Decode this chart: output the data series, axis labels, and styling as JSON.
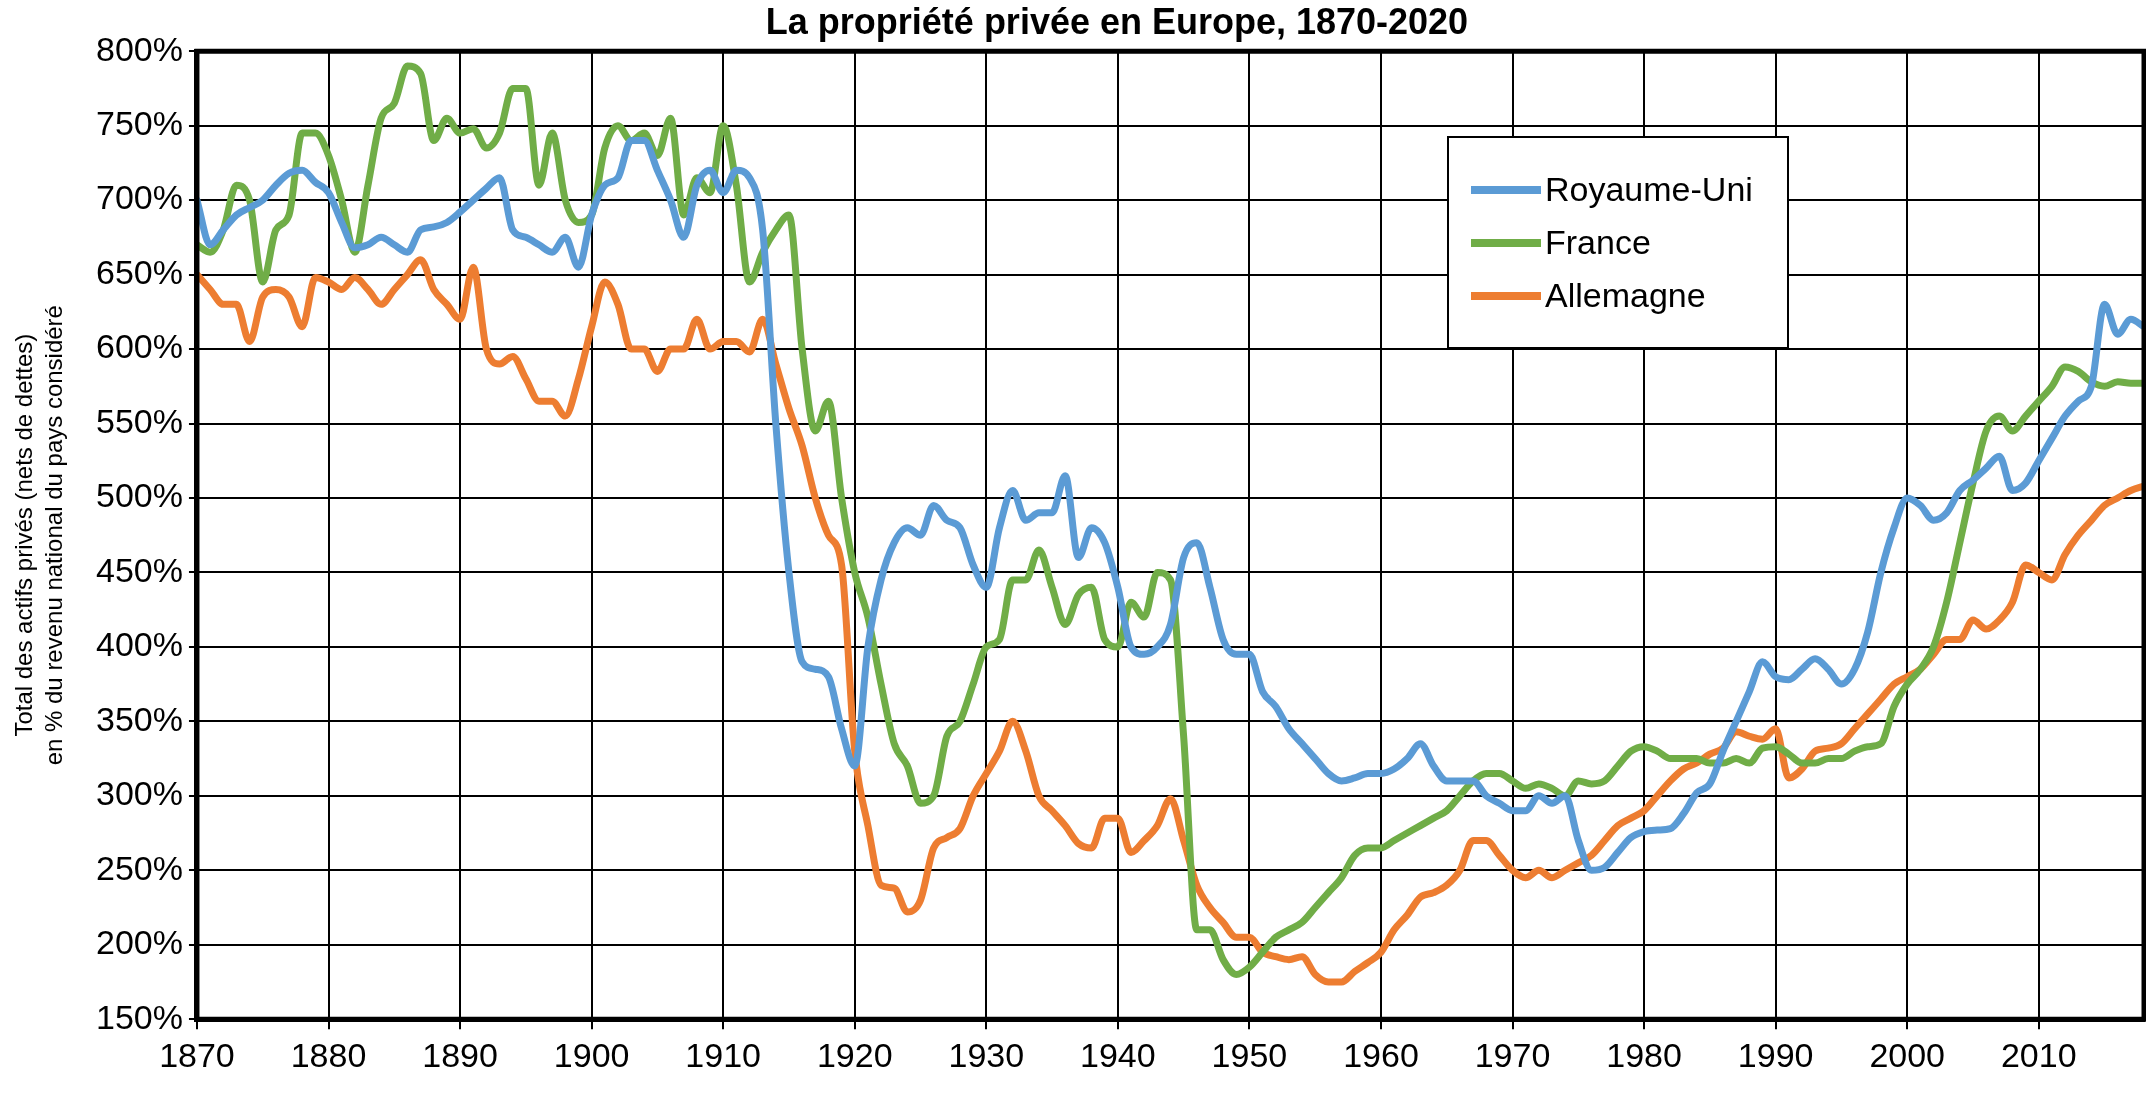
{
  "chart_data": {
    "type": "line",
    "title": "La propriété privée en Europe, 1870-2020",
    "ylabel": "Total des actifs privés (nets de dettes)\nen % du revenu national du pays considéré",
    "x": [
      1870,
      1871,
      1872,
      1873,
      1874,
      1875,
      1876,
      1877,
      1878,
      1879,
      1880,
      1881,
      1882,
      1883,
      1884,
      1885,
      1886,
      1887,
      1888,
      1889,
      1890,
      1891,
      1892,
      1893,
      1894,
      1895,
      1896,
      1897,
      1898,
      1899,
      1900,
      1901,
      1902,
      1903,
      1904,
      1905,
      1906,
      1907,
      1908,
      1909,
      1910,
      1911,
      1912,
      1913,
      1914,
      1915,
      1916,
      1917,
      1918,
      1919,
      1920,
      1921,
      1922,
      1923,
      1924,
      1925,
      1926,
      1927,
      1928,
      1929,
      1930,
      1931,
      1932,
      1933,
      1934,
      1935,
      1936,
      1937,
      1938,
      1939,
      1940,
      1941,
      1942,
      1943,
      1944,
      1945,
      1946,
      1947,
      1948,
      1949,
      1950,
      1951,
      1952,
      1953,
      1954,
      1955,
      1956,
      1957,
      1958,
      1959,
      1960,
      1961,
      1962,
      1963,
      1964,
      1965,
      1966,
      1967,
      1968,
      1969,
      1970,
      1971,
      1972,
      1973,
      1974,
      1975,
      1976,
      1977,
      1978,
      1979,
      1980,
      1981,
      1982,
      1983,
      1984,
      1985,
      1986,
      1987,
      1988,
      1989,
      1990,
      1991,
      1992,
      1993,
      1994,
      1995,
      1996,
      1997,
      1998,
      1999,
      2000,
      2001,
      2002,
      2003,
      2004,
      2005,
      2006,
      2007,
      2008,
      2009,
      2010,
      2011,
      2012,
      2013,
      2014,
      2015,
      2016,
      2017,
      2018
    ],
    "series": [
      {
        "name": "Royaume-Uni",
        "color": "#5b9bd5",
        "values": [
          700,
          670,
          680,
          690,
          695,
          700,
          710,
          718,
          720,
          712,
          705,
          685,
          668,
          670,
          675,
          670,
          665,
          680,
          682,
          685,
          692,
          700,
          708,
          715,
          680,
          675,
          670,
          665,
          675,
          655,
          690,
          710,
          715,
          740,
          740,
          720,
          700,
          675,
          710,
          720,
          705,
          720,
          715,
          680,
          550,
          450,
          390,
          385,
          380,
          345,
          320,
          400,
          445,
          470,
          480,
          475,
          495,
          485,
          480,
          455,
          440,
          480,
          505,
          485,
          490,
          490,
          515,
          460,
          480,
          470,
          440,
          400,
          395,
          400,
          415,
          460,
          470,
          440,
          405,
          395,
          395,
          370,
          360,
          345,
          335,
          325,
          315,
          310,
          312,
          315,
          315,
          318,
          325,
          335,
          320,
          310,
          310,
          310,
          300,
          295,
          290,
          290,
          300,
          295,
          300,
          270,
          250,
          252,
          262,
          272,
          276,
          277,
          278,
          288,
          302,
          308,
          330,
          350,
          370,
          390,
          380,
          378,
          385,
          392,
          385,
          375,
          385,
          410,
          450,
          480,
          500,
          495,
          485,
          490,
          505,
          512,
          520,
          528,
          505,
          510,
          525,
          540,
          555,
          565,
          575,
          630,
          610,
          620,
          615
        ]
      },
      {
        "name": "France",
        "color": "#70ad47",
        "values": [
          670,
          665,
          680,
          710,
          700,
          645,
          680,
          690,
          745,
          745,
          730,
          700,
          665,
          710,
          755,
          765,
          790,
          785,
          740,
          755,
          745,
          748,
          735,
          745,
          775,
          775,
          710,
          745,
          700,
          685,
          690,
          735,
          750,
          740,
          745,
          730,
          755,
          690,
          715,
          705,
          750,
          710,
          645,
          665,
          680,
          690,
          600,
          545,
          565,
          500,
          450,
          420,
          375,
          335,
          320,
          295,
          300,
          340,
          350,
          375,
          400,
          405,
          445,
          445,
          465,
          440,
          415,
          435,
          440,
          405,
          400,
          430,
          420,
          450,
          445,
          340,
          210,
          210,
          190,
          180,
          185,
          195,
          205,
          210,
          215,
          225,
          235,
          245,
          260,
          265,
          265,
          270,
          275,
          280,
          285,
          290,
          300,
          310,
          315,
          315,
          310,
          305,
          308,
          305,
          300,
          310,
          308,
          310,
          320,
          330,
          333,
          330,
          325,
          325,
          325,
          322,
          322,
          325,
          322,
          332,
          333,
          328,
          322,
          322,
          325,
          325,
          330,
          333,
          335,
          360,
          375,
          385,
          400,
          430,
          470,
          510,
          545,
          555,
          545,
          555,
          565,
          575,
          588,
          585,
          578,
          575,
          578,
          577,
          577
        ]
      },
      {
        "name": "Allemagne",
        "color": "#ed7d31",
        "values": [
          650,
          640,
          630,
          630,
          605,
          635,
          640,
          635,
          615,
          648,
          645,
          640,
          648,
          640,
          630,
          640,
          650,
          660,
          640,
          630,
          620,
          655,
          600,
          590,
          595,
          580,
          565,
          565,
          555,
          580,
          615,
          645,
          630,
          600,
          600,
          585,
          600,
          600,
          620,
          600,
          605,
          605,
          598,
          620,
          590,
          560,
          535,
          500,
          475,
          455,
          330,
          280,
          240,
          238,
          222,
          230,
          265,
          272,
          278,
          300,
          315,
          330,
          350,
          330,
          300,
          290,
          280,
          268,
          265,
          285,
          285,
          262,
          270,
          280,
          298,
          270,
          240,
          225,
          215,
          205,
          205,
          195,
          192,
          190,
          192,
          180,
          175,
          175,
          182,
          188,
          195,
          210,
          220,
          232,
          235,
          240,
          250,
          270,
          270,
          260,
          250,
          245,
          250,
          245,
          250,
          255,
          260,
          270,
          280,
          285,
          290,
          300,
          310,
          318,
          322,
          328,
          332,
          343,
          340,
          338,
          345,
          312,
          318,
          330,
          332,
          335,
          345,
          355,
          365,
          375,
          380,
          385,
          395,
          405,
          405,
          418,
          412,
          418,
          430,
          455,
          450,
          445,
          462,
          475,
          485,
          495,
          500,
          505,
          508
        ]
      }
    ],
    "xlim": [
      1870,
      2018
    ],
    "xticks": [
      1870,
      1880,
      1890,
      1900,
      1910,
      1920,
      1930,
      1940,
      1950,
      1960,
      1970,
      1980,
      1990,
      2000,
      2010
    ],
    "ylim": [
      150,
      800
    ],
    "yticks": [
      {
        "value": 150,
        "label": "150%"
      },
      {
        "value": 200,
        "label": "200%"
      },
      {
        "value": 250,
        "label": "250%"
      },
      {
        "value": 300,
        "label": "300%"
      },
      {
        "value": 350,
        "label": "350%"
      },
      {
        "value": 400,
        "label": "400%"
      },
      {
        "value": 450,
        "label": "450%"
      },
      {
        "value": 500,
        "label": "500%"
      },
      {
        "value": 550,
        "label": "550%"
      },
      {
        "value": 600,
        "label": "600%"
      },
      {
        "value": 650,
        "label": "650%"
      },
      {
        "value": 700,
        "label": "700%"
      },
      {
        "value": 750,
        "label": "750%"
      },
      {
        "value": 800,
        "label": "800%"
      }
    ],
    "grid": true,
    "legend": "top right",
    "marker": "none",
    "line_style": "solid"
  }
}
